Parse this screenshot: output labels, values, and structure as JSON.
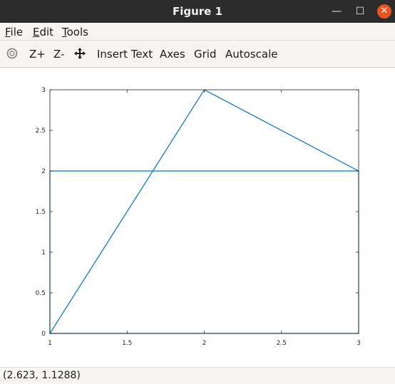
{
  "window": {
    "title": "Figure 1",
    "minimize_glyph": "—",
    "maximize_glyph": "☐",
    "close_glyph": "✕",
    "close_color": "#e95420"
  },
  "menubar": {
    "items": [
      {
        "accel": "F",
        "rest": "ile"
      },
      {
        "accel": "E",
        "rest": "dit"
      },
      {
        "accel": "T",
        "rest": "ools"
      }
    ]
  },
  "toolbar": {
    "rotate_icon": "rotate-icon",
    "zoom_in_label": "Z+",
    "zoom_out_label": "Z-",
    "pan_icon": "pan-icon",
    "insert_text_label": "Insert Text",
    "axes_label": "Axes",
    "grid_label": "Grid",
    "autoscale_label": "Autoscale"
  },
  "status": {
    "coords": "(2.623, 1.1288)"
  },
  "chart_data": {
    "type": "line",
    "title": "",
    "xlabel": "",
    "ylabel": "",
    "xlim": [
      1,
      3
    ],
    "ylim": [
      0,
      3
    ],
    "grid": false,
    "x_ticks": [
      1,
      1.5,
      2,
      2.5,
      3
    ],
    "x_tick_labels": [
      "1",
      "1.5",
      "2",
      "2.5",
      "3"
    ],
    "y_ticks": [
      0,
      0.5,
      1,
      1.5,
      2,
      2.5,
      3
    ],
    "y_tick_labels": [
      "0",
      "0.5",
      "1",
      "1.5",
      "2",
      "2.5",
      "3"
    ],
    "series": [
      {
        "color": "#0072bd",
        "x": [
          1,
          1,
          3,
          3,
          1,
          2,
          3
        ],
        "y": [
          0,
          2,
          2,
          0,
          0,
          3,
          2
        ]
      }
    ]
  }
}
